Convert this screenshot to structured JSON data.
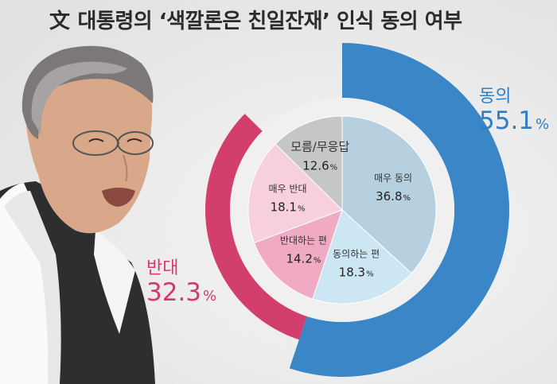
{
  "title": {
    "mark": "文",
    "text": "대통령의 ‘색깔론은 친일잔재’ 인식 동의 여부"
  },
  "chart_data": {
    "type": "pie",
    "title": "文 대통령의 ‘색깔론은 친일잔재’ 인식 동의 여부",
    "units": "%",
    "groups": [
      {
        "name": "동의",
        "value": 55.1,
        "color": "#3a86c6",
        "label_color": "#2f7fc2"
      },
      {
        "name": "반대",
        "value": 32.3,
        "color": "#d23f6d",
        "label_color": "#d43a6a"
      }
    ],
    "slices": [
      {
        "name": "매우 동의",
        "value": 36.8,
        "group": "동의",
        "color": "#b6d0e0"
      },
      {
        "name": "동의하는 편",
        "value": 18.3,
        "group": "동의",
        "color": "#cde6f4"
      },
      {
        "name": "반대하는 편",
        "value": 14.2,
        "group": "반대",
        "color": "#f0aac3"
      },
      {
        "name": "매우 반대",
        "value": 18.1,
        "group": "반대",
        "color": "#f8cfdc"
      },
      {
        "name": "모름/무응답",
        "value": 12.6,
        "group": null,
        "color": "#c6c6c6"
      }
    ]
  }
}
